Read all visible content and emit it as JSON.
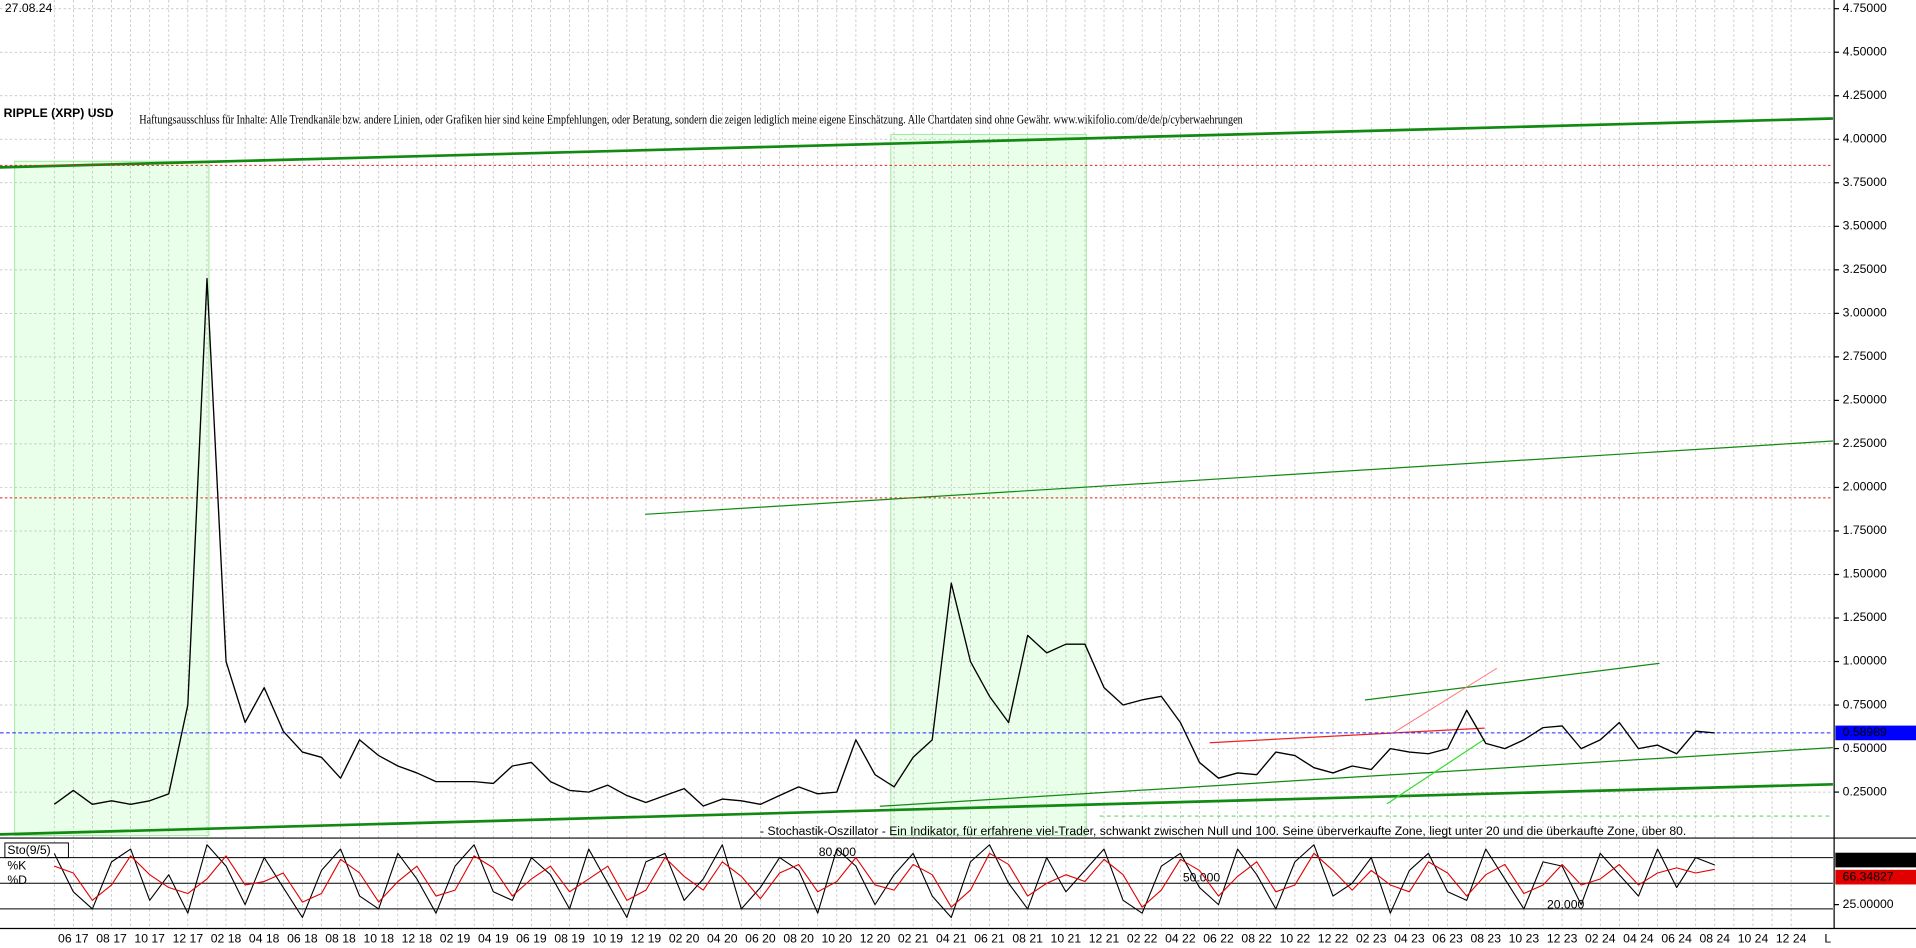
{
  "chart_data": [
    {
      "type": "line",
      "title": "RIPPLE (XRP) USD",
      "date": "27.08.24",
      "disclaimer": "Haftungsausschluss für Inhalte: Alle Trendkanäle bzw. andere Linien, oder Grafiken hier sind keine Empfehlungen, oder Beratung, sondern die zeigen lediglich meine eigene Einschätzung. Alle Chartdaten sind ohne Gewähr. www.wikifolio.com/de/de/p/cyberwaehrungen",
      "annotation": "- Stochastik-Oszillator - Ein Indikator, für erfahrene viel-Trader, schwankt zwischen Null und 100. Seine überverkaufte Zone, liegt unter 20 und die überkaufte Zone, über 80.",
      "x_end_label": "L",
      "categories": [
        null,
        "06 17",
        null,
        "08 17",
        null,
        "10 17",
        null,
        "12 17",
        null,
        "02 18",
        null,
        "04 18",
        null,
        "06 18",
        null,
        "08 18",
        null,
        "10 18",
        null,
        "12 18",
        null,
        "02 19",
        null,
        "04 19",
        null,
        "06 19",
        null,
        "08 19",
        null,
        "10 19",
        null,
        "12 19",
        null,
        "02 20",
        null,
        "04 20",
        null,
        "06 20",
        null,
        "08 20",
        null,
        "10 20",
        null,
        "12 20",
        null,
        "02 21",
        null,
        "04 21",
        null,
        "06 21",
        null,
        "08 21",
        null,
        "10 21",
        null,
        "12 21",
        null,
        "02 22",
        null,
        "04 22",
        null,
        "06 22",
        null,
        "08 22",
        null,
        "10 22",
        null,
        "12 22",
        null,
        "02 23",
        null,
        "04 23",
        null,
        "06 23",
        null,
        "08 23",
        null,
        "10 23",
        null,
        "12 23",
        null,
        "02 24",
        null,
        "04 24",
        null,
        "06 24",
        null,
        "08 24",
        null,
        "10 24",
        null,
        "12 24"
      ],
      "series": [
        {
          "color": "#000000",
          "values": [
            0.18,
            0.26,
            0.18,
            0.2,
            0.18,
            0.2,
            0.24,
            0.75,
            3.2,
            1.0,
            0.65,
            0.85,
            0.6,
            0.48,
            0.45,
            0.33,
            0.55,
            0.46,
            0.4,
            0.36,
            0.31,
            0.31,
            0.31,
            0.3,
            0.4,
            0.42,
            0.31,
            0.26,
            0.25,
            0.29,
            0.23,
            0.19,
            0.23,
            0.27,
            0.17,
            0.21,
            0.2,
            0.18,
            0.23,
            0.28,
            0.24,
            0.25,
            0.55,
            0.35,
            0.28,
            0.45,
            0.55,
            1.45,
            1.0,
            0.8,
            0.65,
            1.15,
            1.05,
            1.1,
            1.1,
            0.85,
            0.75,
            0.78,
            0.8,
            0.65,
            0.42,
            0.33,
            0.36,
            0.35,
            0.48,
            0.46,
            0.39,
            0.36,
            0.4,
            0.38,
            0.5,
            0.48,
            0.47,
            0.5,
            0.72,
            0.53,
            0.5,
            0.55,
            0.62,
            0.63,
            0.5,
            0.55,
            0.65,
            0.5,
            0.52,
            0.47,
            0.6,
            0.59,
            null,
            null,
            null,
            null
          ]
        }
      ],
      "last_price": 0.58989,
      "resistance_lines": [
        3.85,
        1.94
      ],
      "ylim": [
        0,
        4.8
      ],
      "yticks": [
        {
          "value": 0.25,
          "label": "0.25000"
        },
        {
          "value": 0.5,
          "label": "0.50000"
        },
        {
          "value": 0.75,
          "label": "0.75000"
        },
        {
          "value": 1,
          "label": "1.00000"
        },
        {
          "value": 1.25,
          "label": "1.25000"
        },
        {
          "value": 1.5,
          "label": "1.50000"
        },
        {
          "value": 1.75,
          "label": "1.75000"
        },
        {
          "value": 2,
          "label": "2.00000"
        },
        {
          "value": 2.25,
          "label": "2.25000"
        },
        {
          "value": 2.5,
          "label": "2.50000"
        },
        {
          "value": 2.75,
          "label": "2.75000"
        },
        {
          "value": 3,
          "label": "3.00000"
        },
        {
          "value": 3.25,
          "label": "3.25000"
        },
        {
          "value": 3.5,
          "label": "3.50000"
        },
        {
          "value": 3.75,
          "label": "3.75000"
        },
        {
          "value": 4,
          "label": "4.00000"
        },
        {
          "value": 4.25,
          "label": "4.25000"
        },
        {
          "value": 4.5,
          "label": "4.50000"
        },
        {
          "value": 4.75,
          "label": "4.75000"
        }
      ],
      "grid": true
    },
    {
      "type": "line",
      "indicator_label": "Sto(9/5)",
      "series": [
        {
          "name": "%K",
          "color": "#000000",
          "values": [
            85,
            40,
            20,
            75,
            90,
            30,
            60,
            15,
            95,
            70,
            25,
            80,
            45,
            10,
            65,
            90,
            35,
            20,
            85,
            55,
            15,
            70,
            95,
            40,
            30,
            80,
            60,
            20,
            90,
            50,
            10,
            75,
            85,
            30,
            55,
            95,
            20,
            45,
            80,
            65,
            15,
            90,
            70,
            25,
            60,
            85,
            35,
            10,
            75,
            95,
            50,
            20,
            80,
            40,
            65,
            90,
            30,
            15,
            70,
            85,
            45,
            25,
            90,
            60,
            20,
            75,
            95,
            35,
            50,
            80,
            15,
            65,
            85,
            40,
            30,
            90,
            55,
            20,
            75,
            70,
            25,
            85,
            60,
            35,
            90,
            45,
            80,
            71.28331,
            null,
            null,
            null,
            null
          ]
        },
        {
          "name": "%D",
          "color": "#e00000",
          "values": [
            70,
            62,
            30,
            48,
            82,
            60,
            45,
            38,
            55,
            82,
            48,
            52,
            62,
            28,
            38,
            78,
            62,
            28,
            52,
            70,
            35,
            42,
            82,
            68,
            35,
            55,
            70,
            40,
            55,
            70,
            30,
            42,
            80,
            58,
            42,
            75,
            58,
            32,
            62,
            72,
            40,
            52,
            80,
            48,
            42,
            72,
            60,
            22,
            42,
            85,
            72,
            35,
            50,
            60,
            52,
            78,
            60,
            22,
            42,
            78,
            65,
            35,
            58,
            75,
            40,
            48,
            85,
            65,
            42,
            65,
            48,
            40,
            75,
            62,
            35,
            60,
            72,
            38,
            48,
            72,
            48,
            55,
            72,
            48,
            62,
            68,
            62,
            66.34827,
            null,
            null,
            null,
            null
          ]
        }
      ],
      "levels": [
        {
          "value": 80,
          "label": "80.000"
        },
        {
          "value": 50,
          "label": "50.000"
        },
        {
          "value": 20,
          "label": "20.000"
        }
      ],
      "ylim": [
        0,
        100
      ],
      "yticks": [
        {
          "value": 25,
          "label": "25.00000"
        }
      ]
    }
  ]
}
